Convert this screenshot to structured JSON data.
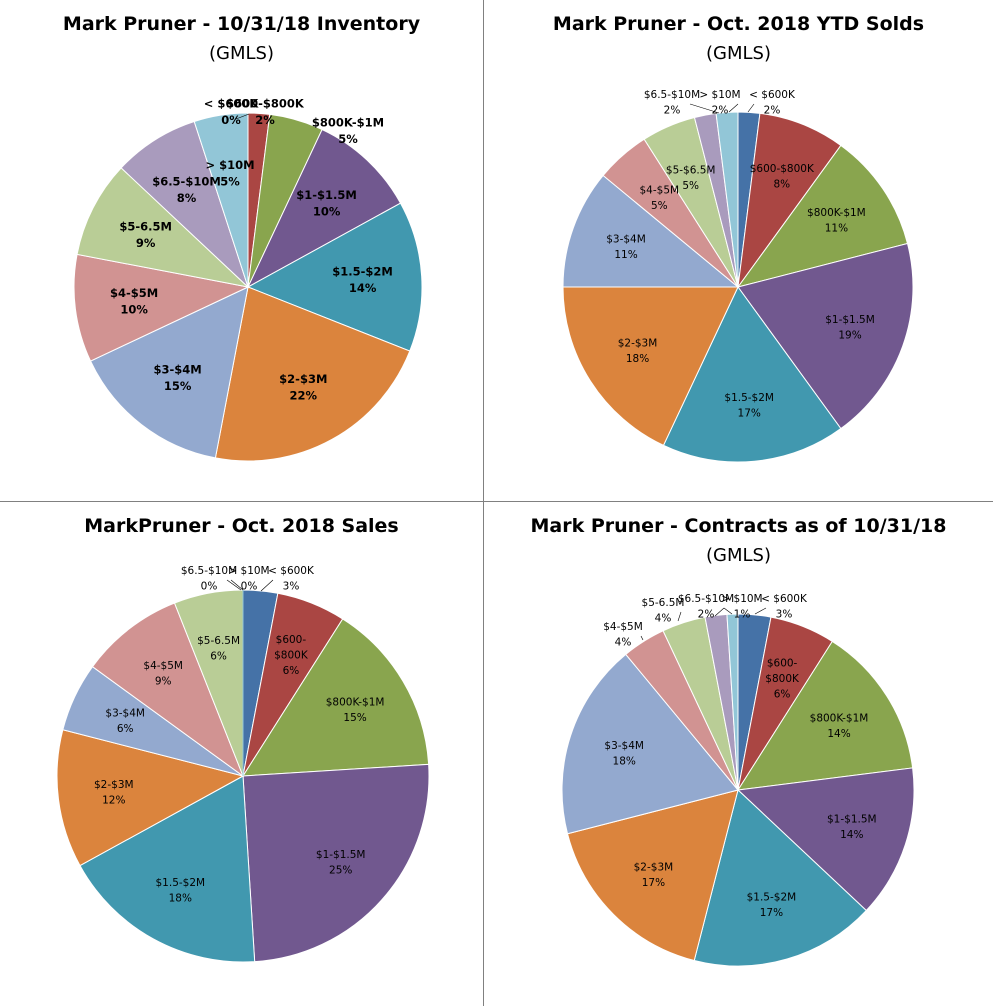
{
  "colors": {
    "lt600k": "#4572a7",
    "600_800k": "#aa4643",
    "800k_1m": "#89a54e",
    "1_1.5m": "#71588f",
    "1.5_2m": "#4198af",
    "2_3m": "#db843d",
    "3_4m": "#93a9cf",
    "4_5m": "#d19392",
    "5_6.5m": "#b9cd96",
    "6.5_10m": "#a99bbd",
    "gt10m": "#92c6d7"
  },
  "chart_data": [
    {
      "type": "pie",
      "title": "Mark Pruner - 10/31/18 Inventory",
      "subtitle": "(GMLS)",
      "slices": [
        {
          "label": "< $600K",
          "value": 0,
          "percent": "0%",
          "color_key": "lt600k"
        },
        {
          "label": "$600-$800K",
          "value": 2,
          "percent": "2%",
          "color_key": "600_800k"
        },
        {
          "label": "$800K-$1M",
          "value": 5,
          "percent": "5%",
          "color_key": "800k_1m"
        },
        {
          "label": "$1-$1.5M",
          "value": 10,
          "percent": "10%",
          "color_key": "1_1.5m"
        },
        {
          "label": "$1.5-$2M",
          "value": 14,
          "percent": "14%",
          "color_key": "1.5_2m"
        },
        {
          "label": "$2-$3M",
          "value": 22,
          "percent": "22%",
          "color_key": "2_3m"
        },
        {
          "label": "$3-$4M",
          "value": 15,
          "percent": "15%",
          "color_key": "3_4m"
        },
        {
          "label": "$4-$5M",
          "value": 10,
          "percent": "10%",
          "color_key": "4_5m"
        },
        {
          "label": "$5-6.5M",
          "value": 9,
          "percent": "9%",
          "color_key": "5_6.5m"
        },
        {
          "label": "$6.5-$10M",
          "value": 8,
          "percent": "8%",
          "color_key": "6.5_10m"
        },
        {
          "label": "> $10M",
          "value": 5,
          "percent": "5%",
          "color_key": "gt10m"
        }
      ]
    },
    {
      "type": "pie",
      "title": "Mark Pruner - Oct. 2018 YTD Solds",
      "subtitle": "(GMLS)",
      "slices": [
        {
          "label": "< $600K",
          "value": 2,
          "percent": "2%",
          "color_key": "lt600k"
        },
        {
          "label": "$600-$800K",
          "value": 8,
          "percent": "8%",
          "color_key": "600_800k"
        },
        {
          "label": "$800K-$1M",
          "value": 11,
          "percent": "11%",
          "color_key": "800k_1m"
        },
        {
          "label": "$1-$1.5M",
          "value": 19,
          "percent": "19%",
          "color_key": "1_1.5m"
        },
        {
          "label": "$1.5-$2M",
          "value": 17,
          "percent": "17%",
          "color_key": "1.5_2m"
        },
        {
          "label": "$2-$3M",
          "value": 18,
          "percent": "18%",
          "color_key": "2_3m"
        },
        {
          "label": "$3-$4M",
          "value": 11,
          "percent": "11%",
          "color_key": "3_4m"
        },
        {
          "label": "$4-$5M",
          "value": 5,
          "percent": "5%",
          "color_key": "4_5m"
        },
        {
          "label": "$5-$6.5M",
          "value": 5,
          "percent": "5%",
          "color_key": "5_6.5m"
        },
        {
          "label": "$6.5-$10M",
          "value": 2,
          "percent": "2%",
          "color_key": "6.5_10m"
        },
        {
          "label": "> $10M",
          "value": 2,
          "percent": "2%",
          "color_key": "gt10m"
        }
      ]
    },
    {
      "type": "pie",
      "title": "MarkPruner - Oct. 2018 Sales",
      "subtitle": "",
      "slices": [
        {
          "label": "< $600K",
          "value": 3,
          "percent": "3%",
          "color_key": "lt600k"
        },
        {
          "label": "$600-\n$800K",
          "value": 6,
          "percent": "6%",
          "color_key": "600_800k"
        },
        {
          "label": "$800K-$1M",
          "value": 15,
          "percent": "15%",
          "color_key": "800k_1m"
        },
        {
          "label": "$1-$1.5M",
          "value": 25,
          "percent": "25%",
          "color_key": "1_1.5m"
        },
        {
          "label": "$1.5-$2M",
          "value": 18,
          "percent": "18%",
          "color_key": "1.5_2m"
        },
        {
          "label": "$2-$3M",
          "value": 12,
          "percent": "12%",
          "color_key": "2_3m"
        },
        {
          "label": "$3-$4M",
          "value": 6,
          "percent": "6%",
          "color_key": "3_4m"
        },
        {
          "label": "$4-$5M",
          "value": 9,
          "percent": "9%",
          "color_key": "4_5m"
        },
        {
          "label": "$5-6.5M",
          "value": 6,
          "percent": "6%",
          "color_key": "5_6.5m"
        },
        {
          "label": "$6.5-$10M",
          "value": 0,
          "percent": "0%",
          "color_key": "6.5_10m"
        },
        {
          "label": "> $10M",
          "value": 0,
          "percent": "0%",
          "color_key": "gt10m"
        }
      ]
    },
    {
      "type": "pie",
      "title": "Mark Pruner - Contracts as of 10/31/18",
      "subtitle": "(GMLS)",
      "slices": [
        {
          "label": "< $600K",
          "value": 3,
          "percent": "3%",
          "color_key": "lt600k"
        },
        {
          "label": "$600-\n$800K",
          "value": 6,
          "percent": "6%",
          "color_key": "600_800k"
        },
        {
          "label": "$800K-$1M",
          "value": 14,
          "percent": "14%",
          "color_key": "800k_1m"
        },
        {
          "label": "$1-$1.5M",
          "value": 14,
          "percent": "14%",
          "color_key": "1_1.5m"
        },
        {
          "label": "$1.5-$2M",
          "value": 17,
          "percent": "17%",
          "color_key": "1.5_2m"
        },
        {
          "label": "$2-$3M",
          "value": 17,
          "percent": "17%",
          "color_key": "2_3m"
        },
        {
          "label": "$3-$4M",
          "value": 18,
          "percent": "18%",
          "color_key": "3_4m"
        },
        {
          "label": "$4-$5M",
          "value": 4,
          "percent": "4%",
          "color_key": "4_5m"
        },
        {
          "label": "$5-6.5M",
          "value": 4,
          "percent": "4%",
          "color_key": "5_6.5m"
        },
        {
          "label": "$6.5-$10M",
          "value": 2,
          "percent": "2%",
          "color_key": "6.5_10m"
        },
        {
          "label": "> $10M",
          "value": 1,
          "percent": "1%",
          "color_key": "gt10m"
        }
      ]
    }
  ]
}
